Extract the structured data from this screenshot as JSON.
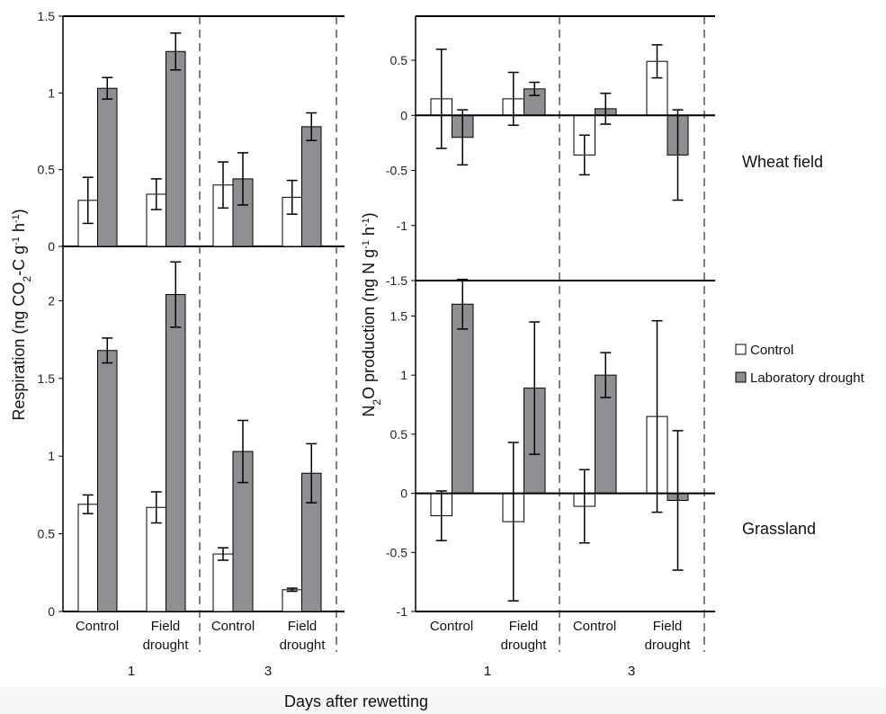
{
  "chart_data": [
    {
      "type": "bar",
      "panel": "Wheat field",
      "metric": "respiration",
      "categories": [
        "Control",
        "Field drought",
        "Control",
        "Field drought"
      ],
      "days": [
        "1",
        "1",
        "3",
        "3"
      ],
      "series": [
        {
          "name": "Control",
          "values": [
            0.3,
            0.34,
            0.4,
            0.32
          ],
          "errors": [
            0.15,
            0.1,
            0.15,
            0.11
          ]
        },
        {
          "name": "Laboratory drought",
          "values": [
            1.03,
            1.27,
            0.44,
            0.78
          ],
          "errors": [
            0.07,
            0.12,
            0.17,
            0.09
          ]
        }
      ],
      "ylim": [
        0,
        1.5
      ],
      "yticks": [
        "0",
        "0.5",
        "1",
        "1.5"
      ]
    },
    {
      "type": "bar",
      "panel": "Grassland",
      "metric": "respiration",
      "categories": [
        "Control",
        "Field drought",
        "Control",
        "Field drought"
      ],
      "days": [
        "1",
        "1",
        "3",
        "3"
      ],
      "series": [
        {
          "name": "Control",
          "values": [
            0.69,
            0.67,
            0.37,
            0.14
          ],
          "errors": [
            0.06,
            0.1,
            0.04,
            0.01
          ]
        },
        {
          "name": "Laboratory drought",
          "values": [
            1.68,
            2.04,
            1.03,
            0.89
          ],
          "errors": [
            0.08,
            0.21,
            0.2,
            0.19
          ]
        }
      ],
      "ylim": [
        0,
        2.35
      ],
      "yticks": [
        "0",
        "0.5",
        "1",
        "1.5",
        "2"
      ]
    },
    {
      "type": "bar",
      "panel": "Wheat field",
      "metric": "n2o",
      "categories": [
        "Control",
        "Field drought",
        "Control",
        "Field drought"
      ],
      "days": [
        "1",
        "1",
        "3",
        "3"
      ],
      "series": [
        {
          "name": "Control",
          "values": [
            0.15,
            0.15,
            -0.36,
            0.49
          ],
          "errors": [
            0.45,
            0.24,
            0.18,
            0.15
          ]
        },
        {
          "name": "Laboratory drought",
          "values": [
            -0.2,
            0.24,
            0.06,
            -0.36
          ],
          "errors": [
            0.25,
            0.06,
            0.14,
            0.41
          ]
        }
      ],
      "ylim": [
        -1.5,
        0.9
      ],
      "yticks": [
        "-1.5",
        "-1",
        "-0.5",
        "0",
        "0.5"
      ]
    },
    {
      "type": "bar",
      "panel": "Grassland",
      "metric": "n2o",
      "categories": [
        "Control",
        "Field drought",
        "Control",
        "Field drought"
      ],
      "days": [
        "1",
        "1",
        "3",
        "3"
      ],
      "series": [
        {
          "name": "Control",
          "values": [
            -0.19,
            -0.24,
            -0.11,
            0.65
          ],
          "errors": [
            0.21,
            0.67,
            0.31,
            0.81
          ]
        },
        {
          "name": "Laboratory drought",
          "values": [
            1.6,
            0.89,
            1.0,
            -0.06
          ],
          "errors": [
            0.21,
            0.56,
            0.19,
            0.59
          ]
        }
      ],
      "ylim": [
        -1,
        1.8
      ],
      "yticks": [
        "-1",
        "-0.5",
        "0",
        "0.5",
        "1",
        "1.5"
      ]
    }
  ],
  "labels": {
    "resp_ylabel": "Respiration (ng CO₂-C g⁻¹ h⁻¹)",
    "n2o_ylabel": "N₂O production (ng N g⁻¹ h⁻¹)",
    "xlabel": "Days after rewetting",
    "wheat": "Wheat field",
    "grass": "Grassland",
    "cat_control": "Control",
    "cat_field_1": "Field",
    "cat_field_2": "drought",
    "day1": "1",
    "day3": "3",
    "legend_control": "Control",
    "legend_lab": "Laboratory drought"
  },
  "colors": {
    "control_fill": "#ffffff",
    "lab_fill": "#8e8f93",
    "stroke": "#000000"
  }
}
